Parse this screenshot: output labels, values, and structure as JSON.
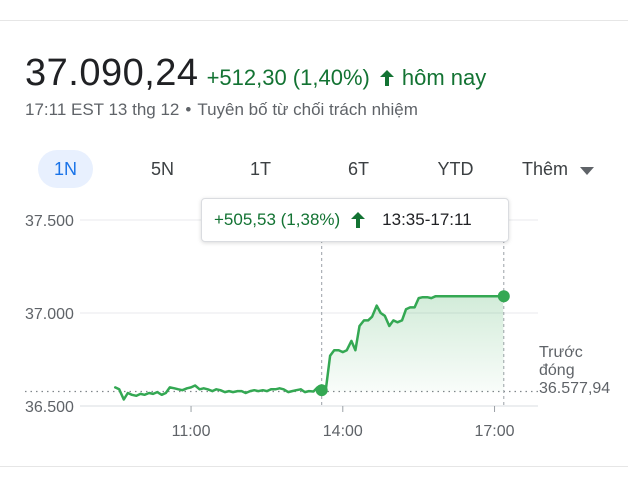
{
  "quote": {
    "price": "37.090,24",
    "change": "+512,30 (1,40%)",
    "period_label": "hôm nay",
    "timestamp": "17:11 EST 13 thg 12",
    "separator": "•",
    "disclaimer": "Tuyên bố từ chối trách nhiệm"
  },
  "tabs": {
    "items": [
      "1N",
      "5N",
      "1T",
      "6T",
      "YTD"
    ],
    "active_index": 0,
    "more_label": "Thêm"
  },
  "tooltip": {
    "change": "+505,53 (1,38%)",
    "time_range": "13:35-17:11"
  },
  "previous_close": {
    "label_line1": "Trước",
    "label_line2": "đóng",
    "value": "36.577,94"
  },
  "colors": {
    "up": "#137333",
    "line": "#34a853",
    "active_tab": "#1a73e8",
    "active_tab_bg": "#e8f0fe"
  },
  "icons": {
    "change_arrow": "arrow-up-icon",
    "more": "caret-down-icon"
  },
  "chart_data": {
    "type": "area",
    "yticks": [
      "37.500",
      "37.000",
      "36.500"
    ],
    "ytick_values": [
      37500,
      37000,
      36500
    ],
    "xticks": [
      "11:00",
      "14:00",
      "17:00"
    ],
    "xtick_hours": [
      11,
      14,
      17
    ],
    "ylim": [
      36500,
      37550
    ],
    "xlim": [
      9.2,
      17.8
    ],
    "reference_line": 36577.94,
    "highlight_start": 13.583,
    "highlight_end": 17.183,
    "x": [
      9.5,
      9.58,
      9.67,
      9.75,
      9.83,
      9.92,
      10.0,
      10.08,
      10.17,
      10.25,
      10.33,
      10.42,
      10.5,
      10.58,
      10.67,
      10.75,
      10.83,
      10.92,
      11.0,
      11.08,
      11.17,
      11.25,
      11.33,
      11.42,
      11.5,
      11.58,
      11.67,
      11.75,
      11.83,
      11.92,
      12.0,
      12.08,
      12.17,
      12.25,
      12.33,
      12.42,
      12.5,
      12.58,
      12.67,
      12.75,
      12.83,
      12.92,
      13.0,
      13.08,
      13.17,
      13.25,
      13.33,
      13.42,
      13.5,
      13.58,
      13.67,
      13.75,
      13.83,
      13.92,
      14.0,
      14.08,
      14.17,
      14.25,
      14.33,
      14.42,
      14.5,
      14.58,
      14.67,
      14.75,
      14.83,
      14.92,
      15.0,
      15.08,
      15.17,
      15.25,
      15.33,
      15.42,
      15.5,
      15.58,
      15.67,
      15.75,
      15.83,
      15.92,
      16.0,
      16.08,
      16.17,
      16.25,
      16.33,
      16.42,
      16.5,
      16.58,
      16.67,
      16.75,
      16.83,
      16.92,
      17.0,
      17.08,
      17.17
    ],
    "y": [
      36600,
      36590,
      36535,
      36570,
      36560,
      36555,
      36565,
      36560,
      36570,
      36565,
      36575,
      36560,
      36570,
      36600,
      36595,
      36590,
      36585,
      36595,
      36600,
      36610,
      36590,
      36595,
      36590,
      36580,
      36590,
      36585,
      36575,
      36580,
      36575,
      36580,
      36580,
      36570,
      36580,
      36585,
      36580,
      36585,
      36580,
      36590,
      36590,
      36595,
      36590,
      36575,
      36580,
      36585,
      36590,
      36575,
      36580,
      36578,
      36600,
      36585,
      36600,
      36770,
      36800,
      36800,
      36790,
      36800,
      36850,
      36800,
      36930,
      36960,
      36960,
      36980,
      37040,
      37000,
      36985,
      36930,
      36960,
      36950,
      36960,
      37020,
      37030,
      37030,
      37080,
      37085,
      37085,
      37080,
      37090,
      37090,
      37090,
      37090,
      37090,
      37090,
      37090,
      37090,
      37090,
      37090,
      37090,
      37090,
      37090,
      37090,
      37090,
      37090,
      37090
    ]
  }
}
